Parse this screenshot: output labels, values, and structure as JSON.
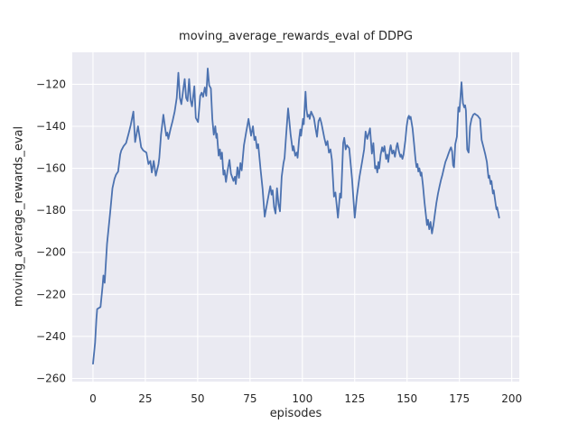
{
  "figure": {
    "background": "#ffffff"
  },
  "chart_data": {
    "type": "line",
    "title": "moving_average_rewards_eval of DDPG",
    "xlabel": "episodes",
    "ylabel": "moving_average_rewards_eval",
    "style": "seaborn-darkgrid",
    "grid": true,
    "legend": "none",
    "plot_bg": "#eaeaf2",
    "grid_color": "#ffffff",
    "line_color": "#4c72b0",
    "text_color": "#262626",
    "xlim": [
      -9.9,
      203.6
    ],
    "ylim": [
      -261.5,
      -104.8
    ],
    "x_ticks": [
      0,
      25,
      50,
      75,
      100,
      125,
      150,
      175,
      200
    ],
    "x_tick_labels": [
      "0",
      "25",
      "50",
      "75",
      "100",
      "125",
      "150",
      "175",
      "200"
    ],
    "y_ticks": [
      -120,
      -140,
      -160,
      -180,
      -200,
      -220,
      -240,
      -260
    ],
    "y_tick_labels": [
      "−120",
      "−140",
      "−160",
      "−180",
      "−200",
      "−220",
      "−240",
      "−260"
    ],
    "series": [
      {
        "name": "moving_average_rewards_eval",
        "points": [
          [
            0,
            -253
          ],
          [
            1,
            -243
          ],
          [
            1.6,
            -232
          ],
          [
            2,
            -227
          ],
          [
            3.6,
            -226
          ],
          [
            4.6,
            -216
          ],
          [
            5,
            -211
          ],
          [
            5.6,
            -214.5
          ],
          [
            6.7,
            -196
          ],
          [
            8.2,
            -181
          ],
          [
            9.3,
            -169.5
          ],
          [
            10.3,
            -165
          ],
          [
            11,
            -163
          ],
          [
            12,
            -161.5
          ],
          [
            13,
            -153.5
          ],
          [
            13.5,
            -151.5
          ],
          [
            14.6,
            -149.5
          ],
          [
            15.8,
            -148
          ],
          [
            17,
            -143.5
          ],
          [
            18,
            -139.5
          ],
          [
            19.3,
            -133
          ],
          [
            20.1,
            -147.5
          ],
          [
            21.5,
            -140
          ],
          [
            23,
            -150
          ],
          [
            24,
            -151.5
          ],
          [
            25.5,
            -152.5
          ],
          [
            26.5,
            -158
          ],
          [
            27.4,
            -156.5
          ],
          [
            28.1,
            -162
          ],
          [
            29,
            -156.5
          ],
          [
            30,
            -163.5
          ],
          [
            31.3,
            -158
          ],
          [
            31.7,
            -155
          ],
          [
            32.5,
            -144
          ],
          [
            33.6,
            -134.5
          ],
          [
            34.5,
            -141
          ],
          [
            35,
            -144.5
          ],
          [
            35.5,
            -143
          ],
          [
            36,
            -146
          ],
          [
            37,
            -141.5
          ],
          [
            38,
            -137.5
          ],
          [
            39,
            -133
          ],
          [
            40,
            -126.5
          ],
          [
            40.8,
            -114.5
          ],
          [
            41.5,
            -126.5
          ],
          [
            42.2,
            -129.5
          ],
          [
            43.1,
            -122.5
          ],
          [
            43.8,
            -117.5
          ],
          [
            44.5,
            -126.5
          ],
          [
            45.2,
            -128
          ],
          [
            45.9,
            -117.5
          ],
          [
            46.6,
            -127.5
          ],
          [
            47.3,
            -130.5
          ],
          [
            48.4,
            -121
          ],
          [
            49.1,
            -136
          ],
          [
            50.2,
            -138
          ],
          [
            51.2,
            -125.5
          ],
          [
            51.9,
            -124
          ],
          [
            52.6,
            -126
          ],
          [
            53.4,
            -121.5
          ],
          [
            54.1,
            -125.5
          ],
          [
            54.8,
            -112.5
          ],
          [
            55.5,
            -120.5
          ],
          [
            56.3,
            -122
          ],
          [
            57,
            -136.5
          ],
          [
            57.7,
            -144
          ],
          [
            58.4,
            -140
          ],
          [
            58.9,
            -145.5
          ],
          [
            59.2,
            -143.5
          ],
          [
            60,
            -154
          ],
          [
            60.6,
            -151
          ],
          [
            61.1,
            -155.5
          ],
          [
            61.6,
            -152.5
          ],
          [
            62.3,
            -163
          ],
          [
            62.8,
            -161
          ],
          [
            63.5,
            -166.5
          ],
          [
            64.2,
            -161.5
          ],
          [
            65.2,
            -156
          ],
          [
            65.9,
            -162.5
          ],
          [
            67.1,
            -166
          ],
          [
            67.8,
            -164
          ],
          [
            68.2,
            -167.5
          ],
          [
            69,
            -159.5
          ],
          [
            69.7,
            -164.5
          ],
          [
            70.4,
            -157.5
          ],
          [
            71,
            -161
          ],
          [
            72.1,
            -149
          ],
          [
            73.2,
            -142.5
          ],
          [
            74.3,
            -136.5
          ],
          [
            75.5,
            -144.5
          ],
          [
            76.4,
            -140
          ],
          [
            77.1,
            -146.5
          ],
          [
            77.6,
            -145
          ],
          [
            78.3,
            -150.5
          ],
          [
            78.9,
            -148.5
          ],
          [
            80,
            -160
          ],
          [
            81,
            -170
          ],
          [
            82,
            -183
          ],
          [
            83,
            -177.5
          ],
          [
            84.3,
            -170.5
          ],
          [
            84.7,
            -168.5
          ],
          [
            85.3,
            -172.5
          ],
          [
            85.8,
            -170.5
          ],
          [
            86.5,
            -178.5
          ],
          [
            87.2,
            -181.5
          ],
          [
            87.9,
            -169.5
          ],
          [
            88.6,
            -177
          ],
          [
            89.3,
            -180.5
          ],
          [
            90.1,
            -164
          ],
          [
            91,
            -157.5
          ],
          [
            91.5,
            -155
          ],
          [
            92.2,
            -145
          ],
          [
            93.2,
            -131.5
          ],
          [
            93.8,
            -137.5
          ],
          [
            94.4,
            -144
          ],
          [
            95.4,
            -151.5
          ],
          [
            95.8,
            -149.5
          ],
          [
            96.6,
            -154
          ],
          [
            97.3,
            -152.5
          ],
          [
            97.7,
            -155
          ],
          [
            98.4,
            -146.5
          ],
          [
            99,
            -141.5
          ],
          [
            99.4,
            -144.5
          ],
          [
            100.3,
            -136.5
          ],
          [
            100.7,
            -139
          ],
          [
            101.5,
            -123.5
          ],
          [
            102,
            -132
          ],
          [
            102.5,
            -135.5
          ],
          [
            103.1,
            -134.5
          ],
          [
            103.5,
            -136.5
          ],
          [
            104.2,
            -133
          ],
          [
            105.5,
            -136
          ],
          [
            106.3,
            -141
          ],
          [
            107,
            -145
          ],
          [
            107.7,
            -137.5
          ],
          [
            108.4,
            -136
          ],
          [
            109.1,
            -138.5
          ],
          [
            109.8,
            -142
          ],
          [
            110.5,
            -145.5
          ],
          [
            111.3,
            -149
          ],
          [
            112,
            -147
          ],
          [
            112.7,
            -152.5
          ],
          [
            113.4,
            -151
          ],
          [
            114.1,
            -156
          ],
          [
            115.1,
            -173.5
          ],
          [
            115.8,
            -171.5
          ],
          [
            117,
            -183.5
          ],
          [
            118,
            -172
          ],
          [
            118.5,
            -174
          ],
          [
            119.5,
            -148
          ],
          [
            120,
            -145.5
          ],
          [
            120.7,
            -151
          ],
          [
            121.3,
            -149
          ],
          [
            122.4,
            -150.5
          ],
          [
            123.7,
            -165
          ],
          [
            125,
            -183.5
          ],
          [
            126,
            -173.5
          ],
          [
            127.3,
            -164
          ],
          [
            128.5,
            -157
          ],
          [
            129.5,
            -151
          ],
          [
            130.2,
            -142.5
          ],
          [
            131,
            -146
          ],
          [
            132.3,
            -141
          ],
          [
            133.2,
            -153
          ],
          [
            133.9,
            -148
          ],
          [
            134.7,
            -160
          ],
          [
            135.3,
            -159
          ],
          [
            135.8,
            -162
          ],
          [
            136.3,
            -157
          ],
          [
            136.7,
            -160
          ],
          [
            137.4,
            -153.5
          ],
          [
            138.1,
            -150
          ],
          [
            138.6,
            -152
          ],
          [
            139.2,
            -149.5
          ],
          [
            140,
            -155.5
          ],
          [
            140.6,
            -153.5
          ],
          [
            141,
            -157
          ],
          [
            141.8,
            -151
          ],
          [
            142.2,
            -149
          ],
          [
            142.9,
            -153
          ],
          [
            143.5,
            -151.5
          ],
          [
            144.2,
            -154.5
          ],
          [
            145,
            -149.5
          ],
          [
            145.4,
            -148
          ],
          [
            146.1,
            -152
          ],
          [
            146.8,
            -154.5
          ],
          [
            147.2,
            -153.5
          ],
          [
            147.8,
            -155.5
          ],
          [
            148.3,
            -153.5
          ],
          [
            149.2,
            -146.5
          ],
          [
            149.8,
            -140
          ],
          [
            150.4,
            -136
          ],
          [
            150.9,
            -135
          ],
          [
            151.3,
            -136.5
          ],
          [
            151.7,
            -135.5
          ],
          [
            152.6,
            -141
          ],
          [
            153.3,
            -148
          ],
          [
            154,
            -155.5
          ],
          [
            154.5,
            -159.5
          ],
          [
            155,
            -158
          ],
          [
            155.4,
            -161.5
          ],
          [
            155.9,
            -160
          ],
          [
            156.5,
            -163.5
          ],
          [
            156.9,
            -162
          ],
          [
            157.6,
            -168
          ],
          [
            158.3,
            -176
          ],
          [
            159.5,
            -187
          ],
          [
            160,
            -184.5
          ],
          [
            160.6,
            -189
          ],
          [
            161.2,
            -185.5
          ],
          [
            161.9,
            -191
          ],
          [
            162.6,
            -187
          ],
          [
            163.3,
            -181.5
          ],
          [
            164,
            -176.5
          ],
          [
            164.8,
            -172
          ],
          [
            165.5,
            -168.5
          ],
          [
            166.2,
            -165.5
          ],
          [
            166.9,
            -163
          ],
          [
            167.6,
            -160
          ],
          [
            168.3,
            -157
          ],
          [
            169.1,
            -155
          ],
          [
            169.8,
            -153
          ],
          [
            170.5,
            -151
          ],
          [
            171,
            -150
          ],
          [
            171.5,
            -152
          ],
          [
            172,
            -158.5
          ],
          [
            172.4,
            -159.5
          ],
          [
            173,
            -148.5
          ],
          [
            173.8,
            -145
          ],
          [
            174.5,
            -131
          ],
          [
            175,
            -133
          ],
          [
            176,
            -119
          ],
          [
            176.7,
            -129
          ],
          [
            177.3,
            -131
          ],
          [
            177.7,
            -130
          ],
          [
            178.1,
            -132.5
          ],
          [
            178.7,
            -151
          ],
          [
            179.4,
            -152.5
          ],
          [
            180.1,
            -140
          ],
          [
            180.8,
            -136.5
          ],
          [
            181.6,
            -134.5
          ],
          [
            182.3,
            -134
          ],
          [
            183,
            -134.5
          ],
          [
            183.7,
            -135
          ],
          [
            184.9,
            -136.5
          ],
          [
            185.6,
            -146.5
          ],
          [
            186.5,
            -150
          ],
          [
            187.4,
            -153.5
          ],
          [
            188.1,
            -157
          ],
          [
            188.9,
            -164.5
          ],
          [
            189.3,
            -163.5
          ],
          [
            189.9,
            -167.5
          ],
          [
            190.3,
            -166
          ],
          [
            191,
            -172
          ],
          [
            191.4,
            -170.5
          ],
          [
            192.3,
            -177
          ],
          [
            192.7,
            -179.5
          ],
          [
            193,
            -178.5
          ],
          [
            194,
            -183.5
          ]
        ]
      }
    ]
  }
}
